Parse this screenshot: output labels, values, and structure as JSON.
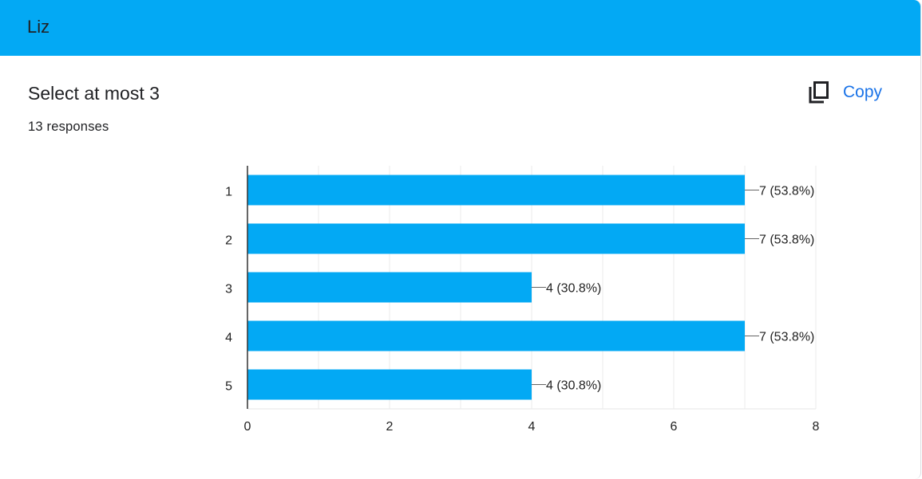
{
  "header": {
    "title": "Liz"
  },
  "question": {
    "title": "Select at most 3",
    "responses": "13 responses"
  },
  "toolbar": {
    "copy_label": "Copy",
    "copy_icon": "copy-icon"
  },
  "colors": {
    "header": "#03a9f4",
    "bar": "#03a9f4",
    "link": "#1a73e8"
  },
  "chart_data": {
    "type": "bar",
    "orientation": "horizontal",
    "categories": [
      "1",
      "2",
      "3",
      "4",
      "5"
    ],
    "values": [
      7,
      7,
      4,
      7,
      4
    ],
    "data_labels": [
      "7 (53.8%)",
      "7 (53.8%)",
      "4 (30.8%)",
      "7 (53.8%)",
      "4 (30.8%)"
    ],
    "xlim": [
      0,
      8
    ],
    "xticks": [
      0,
      2,
      4,
      6,
      8
    ],
    "grid": true,
    "title": "",
    "xlabel": "",
    "ylabel": ""
  }
}
